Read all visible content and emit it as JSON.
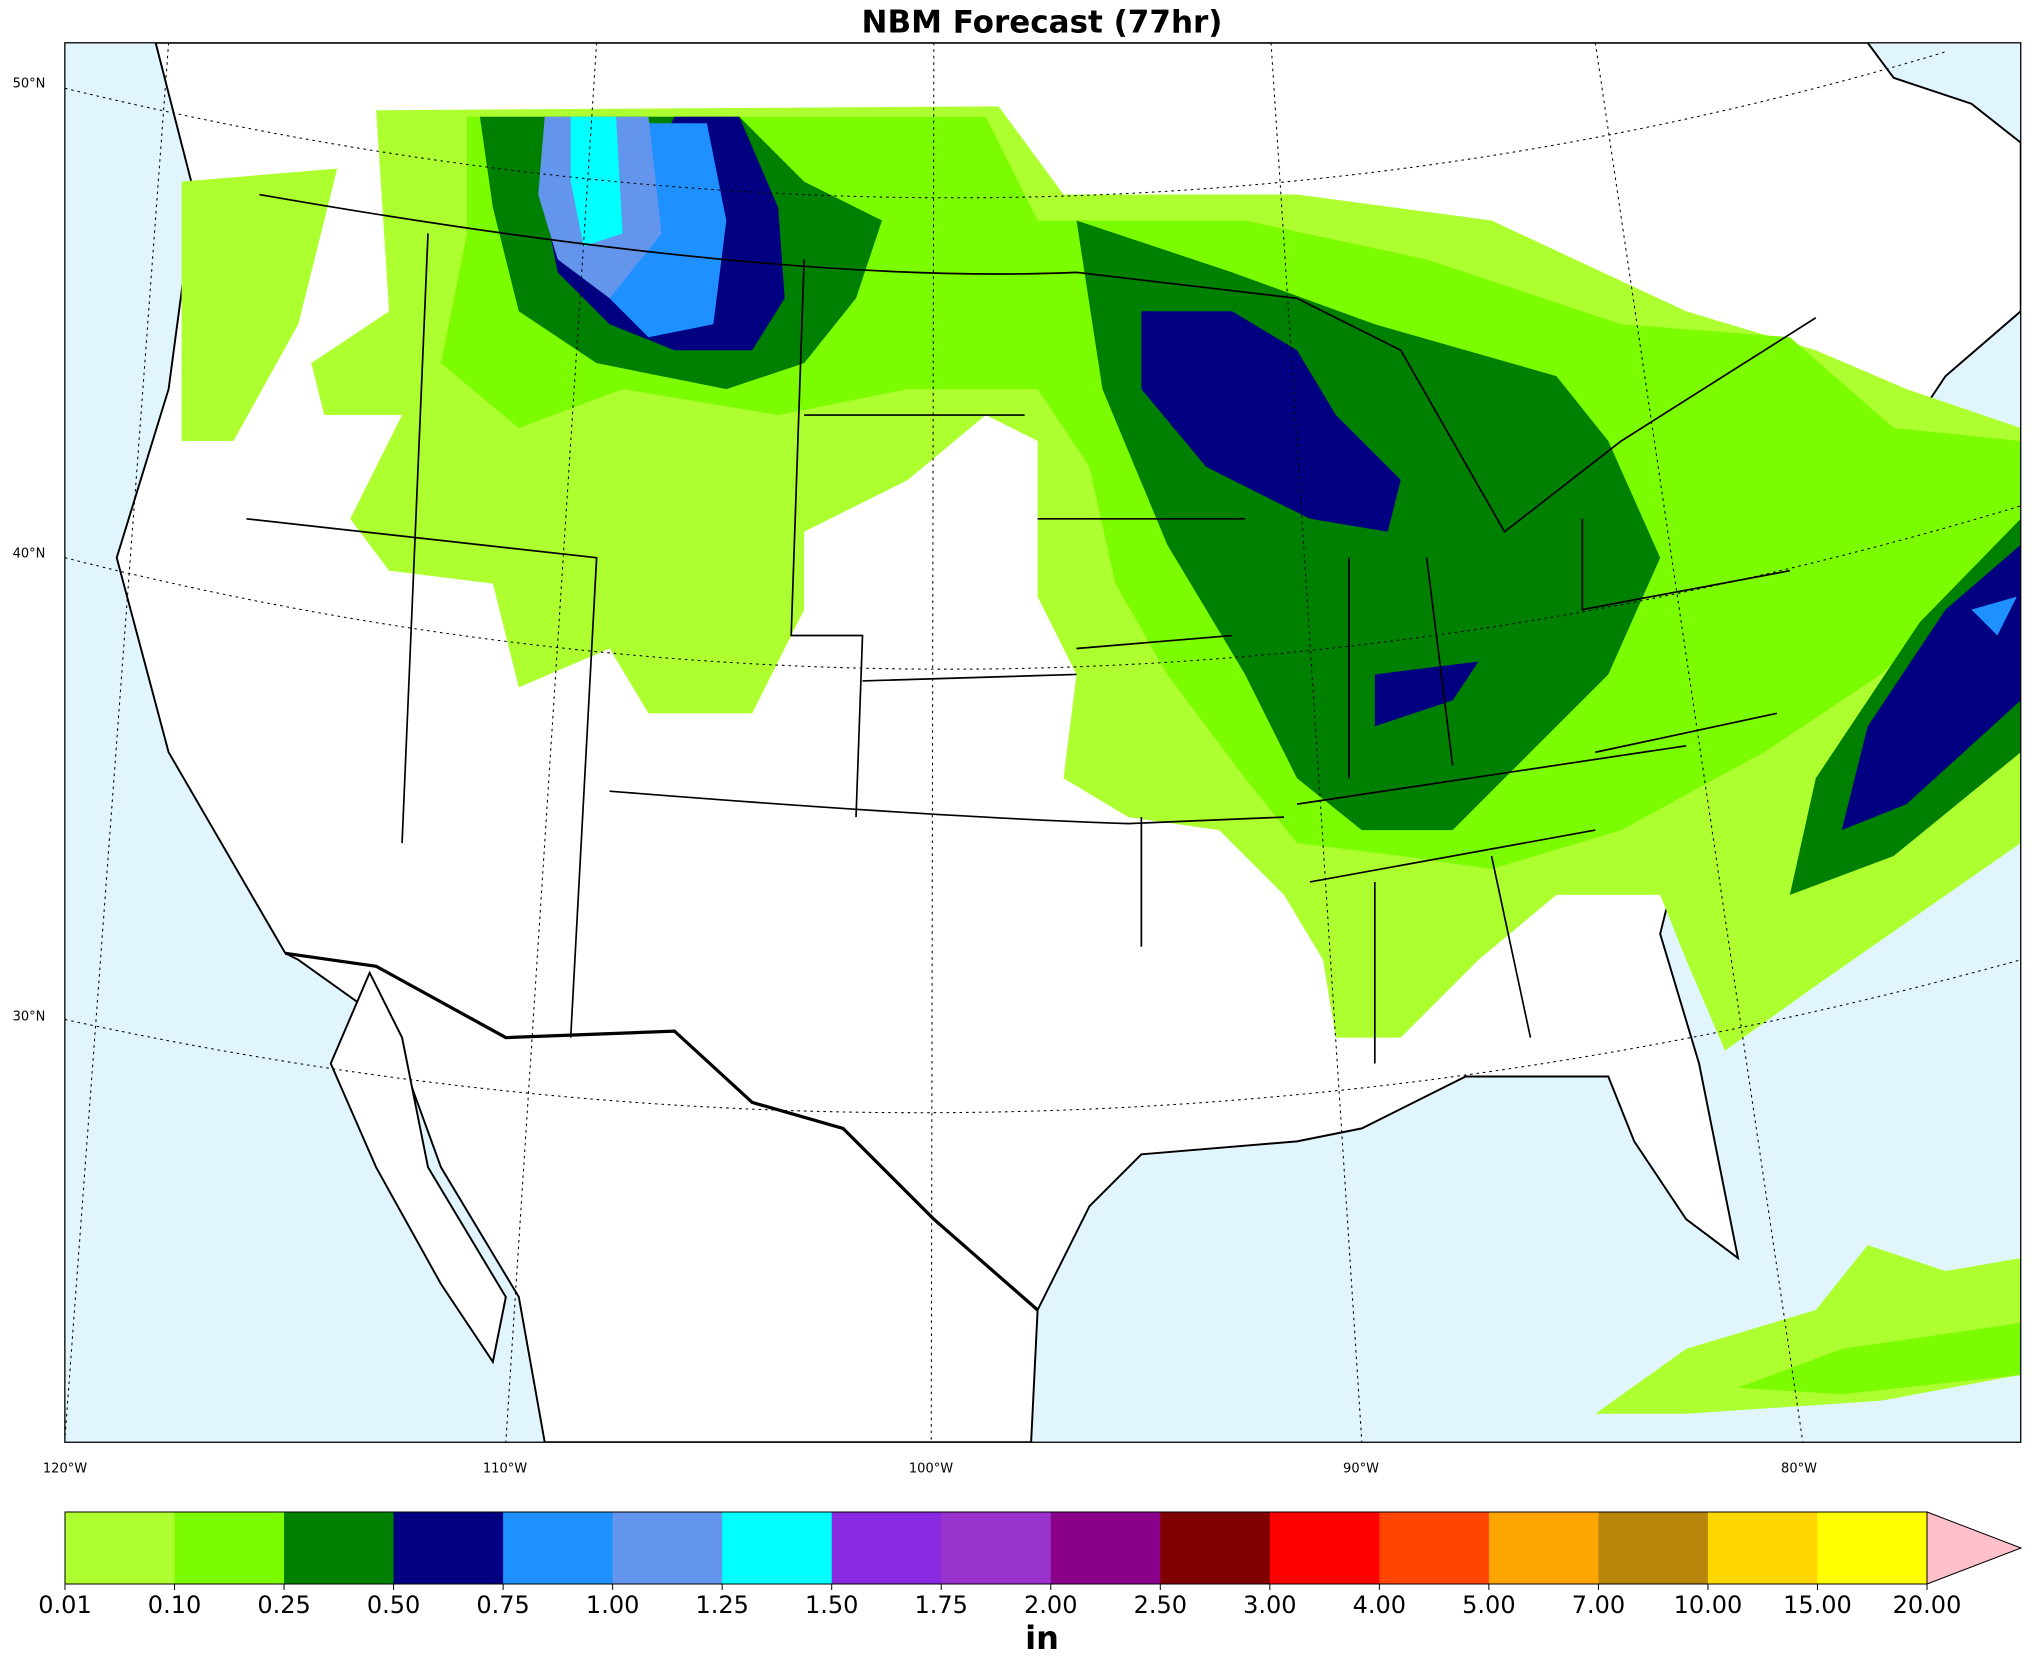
{
  "title": "NBM Forecast (77hr)",
  "map": {
    "lat_labels": [
      "50°N",
      "40°N",
      "30°N"
    ],
    "lon_labels": [
      "120°W",
      "110°W",
      "100°W",
      "90°W",
      "80°W"
    ]
  },
  "colorbar": {
    "ticks": [
      0.01,
      {
        "value": 0.1,
        "label": "0.10"
      },
      0.25,
      {
        "value": 0.5,
        "label": "0.50"
      },
      0.75,
      {
        "value": 1,
        "label": "1.00"
      },
      1.25,
      {
        "value": 1.5,
        "label": "1.50"
      },
      1.75,
      {
        "value": 2,
        "label": "2.00"
      },
      {
        "value": 2.5,
        "label": "2.50"
      },
      {
        "value": 3,
        "label": "3.00"
      },
      {
        "value": 4,
        "label": "4.00"
      },
      {
        "value": 5,
        "label": "5.00"
      },
      {
        "value": 7,
        "label": "7.00"
      },
      {
        "value": 10,
        "label": "10.00"
      },
      {
        "value": 15,
        "label": "15.00"
      },
      {
        "value": 20,
        "label": "20.00"
      }
    ],
    "colors": [
      "#adff2f",
      "#7cfc00",
      "#008000",
      "#000080",
      "#1e90ff",
      "#6495ed",
      "#00ffff",
      "#8a2be2",
      "#9932cc",
      "#8b008b",
      "#800000",
      "#ff0000",
      "#ff4500",
      "#ffa500",
      "#b8860b",
      "#ffd700",
      "#ffff00"
    ],
    "extend_color": "#ffc0cb",
    "unit": "in"
  }
}
